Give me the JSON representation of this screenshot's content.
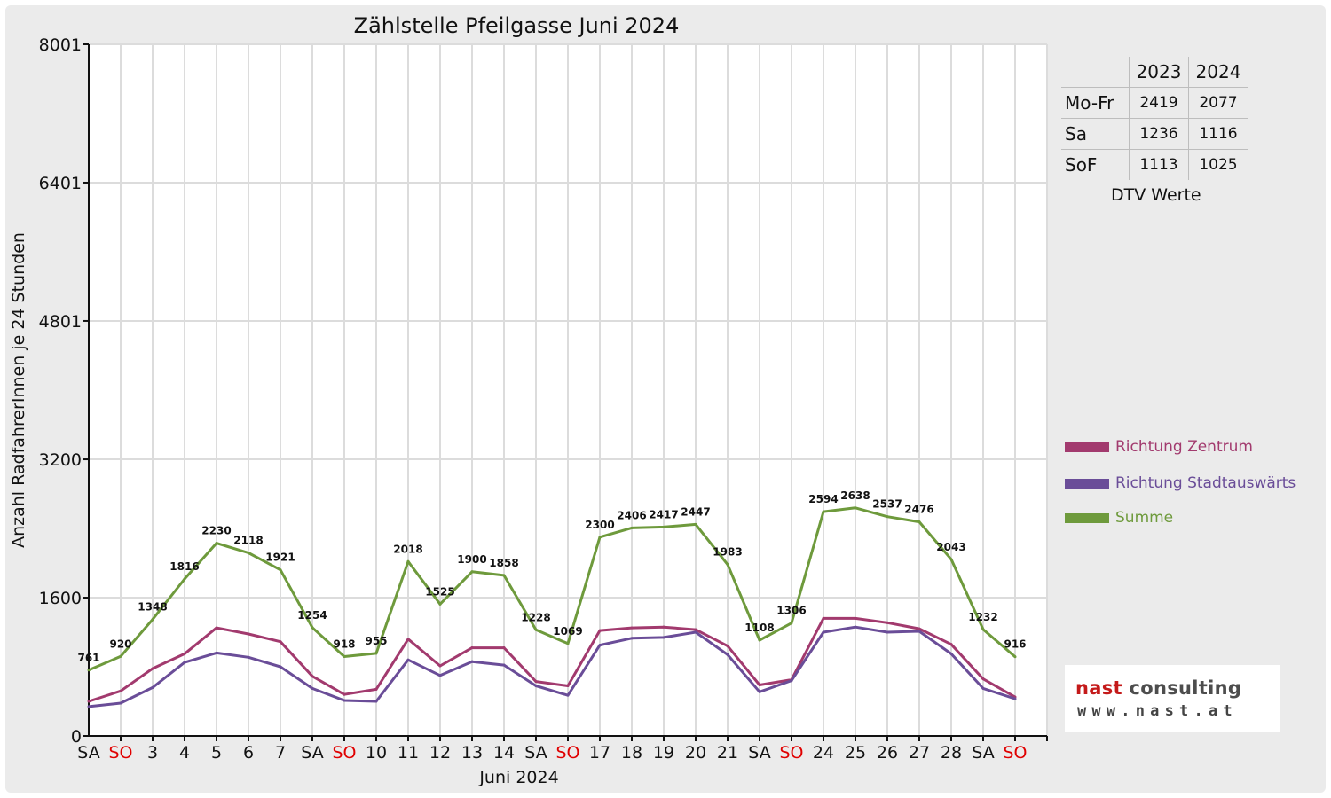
{
  "chart_data": {
    "type": "line",
    "title": "Zählstelle Pfeilgasse Juni 2024",
    "xlabel": "Juni 2024",
    "ylabel": "Anzahl RadfahrerInnen je 24 Stunden",
    "ylim": [
      0,
      8001
    ],
    "yticks": [
      "0",
      "1600",
      "3200",
      "4801",
      "6401",
      "8001"
    ],
    "ytick_values": [
      0,
      1600,
      3200,
      4801,
      6401,
      8001
    ],
    "categories": [
      "SA",
      "SO",
      "3",
      "4",
      "5",
      "6",
      "7",
      "SA",
      "SO",
      "10",
      "11",
      "12",
      "13",
      "14",
      "SA",
      "SO",
      "17",
      "18",
      "19",
      "20",
      "21",
      "SA",
      "SO",
      "24",
      "25",
      "26",
      "27",
      "28",
      "SA",
      "SO"
    ],
    "weekend_flags": [
      false,
      true,
      false,
      false,
      false,
      false,
      false,
      false,
      true,
      false,
      false,
      false,
      false,
      false,
      false,
      true,
      false,
      false,
      false,
      false,
      false,
      false,
      true,
      false,
      false,
      false,
      false,
      false,
      false,
      true
    ],
    "weekend_color": "#e00000",
    "grid": true,
    "series": [
      {
        "name": "Richtung Zentrum",
        "color": "#a23a6e",
        "values": [
          400,
          520,
          780,
          950,
          1250,
          1180,
          1090,
          690,
          480,
          540,
          1120,
          810,
          1020,
          1020,
          630,
          580,
          1220,
          1250,
          1260,
          1230,
          1040,
          590,
          650,
          1360,
          1360,
          1310,
          1240,
          1060,
          660,
          450
        ]
      },
      {
        "name": "Richtung Stadtauswärts",
        "color": "#6a4d98",
        "values": [
          340,
          380,
          560,
          850,
          960,
          910,
          800,
          550,
          410,
          400,
          880,
          700,
          860,
          820,
          580,
          470,
          1050,
          1130,
          1140,
          1200,
          940,
          510,
          640,
          1200,
          1260,
          1200,
          1210,
          950,
          550,
          430
        ]
      },
      {
        "name": "Summe",
        "color": "#6e9a3c",
        "values": [
          761,
          920,
          1348,
          1816,
          2230,
          2118,
          1921,
          1254,
          918,
          955,
          2018,
          1525,
          1900,
          1858,
          1228,
          1069,
          2300,
          2406,
          2417,
          2447,
          1983,
          1108,
          1306,
          2594,
          2638,
          2537,
          2476,
          2043,
          1232,
          916
        ],
        "labels": [
          "761",
          "920",
          "1348",
          "1816",
          "2230",
          "2118",
          "1921",
          "1254",
          "918",
          "955",
          "2018",
          "1525",
          "1900",
          "1858",
          "1228",
          "1069",
          "2300",
          "2406",
          "2417",
          "2447",
          "1983",
          "1108",
          "1306",
          "2594",
          "2638",
          "2537",
          "2476",
          "2043",
          "1232",
          "916"
        ]
      }
    ],
    "legend_position": "right",
    "dtv_table": {
      "caption": "DTV Werte",
      "columns": [
        "2023",
        "2024"
      ],
      "rows": [
        {
          "label": "Mo-Fr",
          "v2023": "2419",
          "v2024": "2077"
        },
        {
          "label": "Sa",
          "v2023": "1236",
          "v2024": "1116"
        },
        {
          "label": "SoF",
          "v2023": "1113",
          "v2024": "1025"
        }
      ]
    }
  },
  "logo": {
    "brand_red": "nast",
    "brand_grey": "consulting",
    "url": "www.nast.at",
    "brand_color": "#c41a1a"
  }
}
